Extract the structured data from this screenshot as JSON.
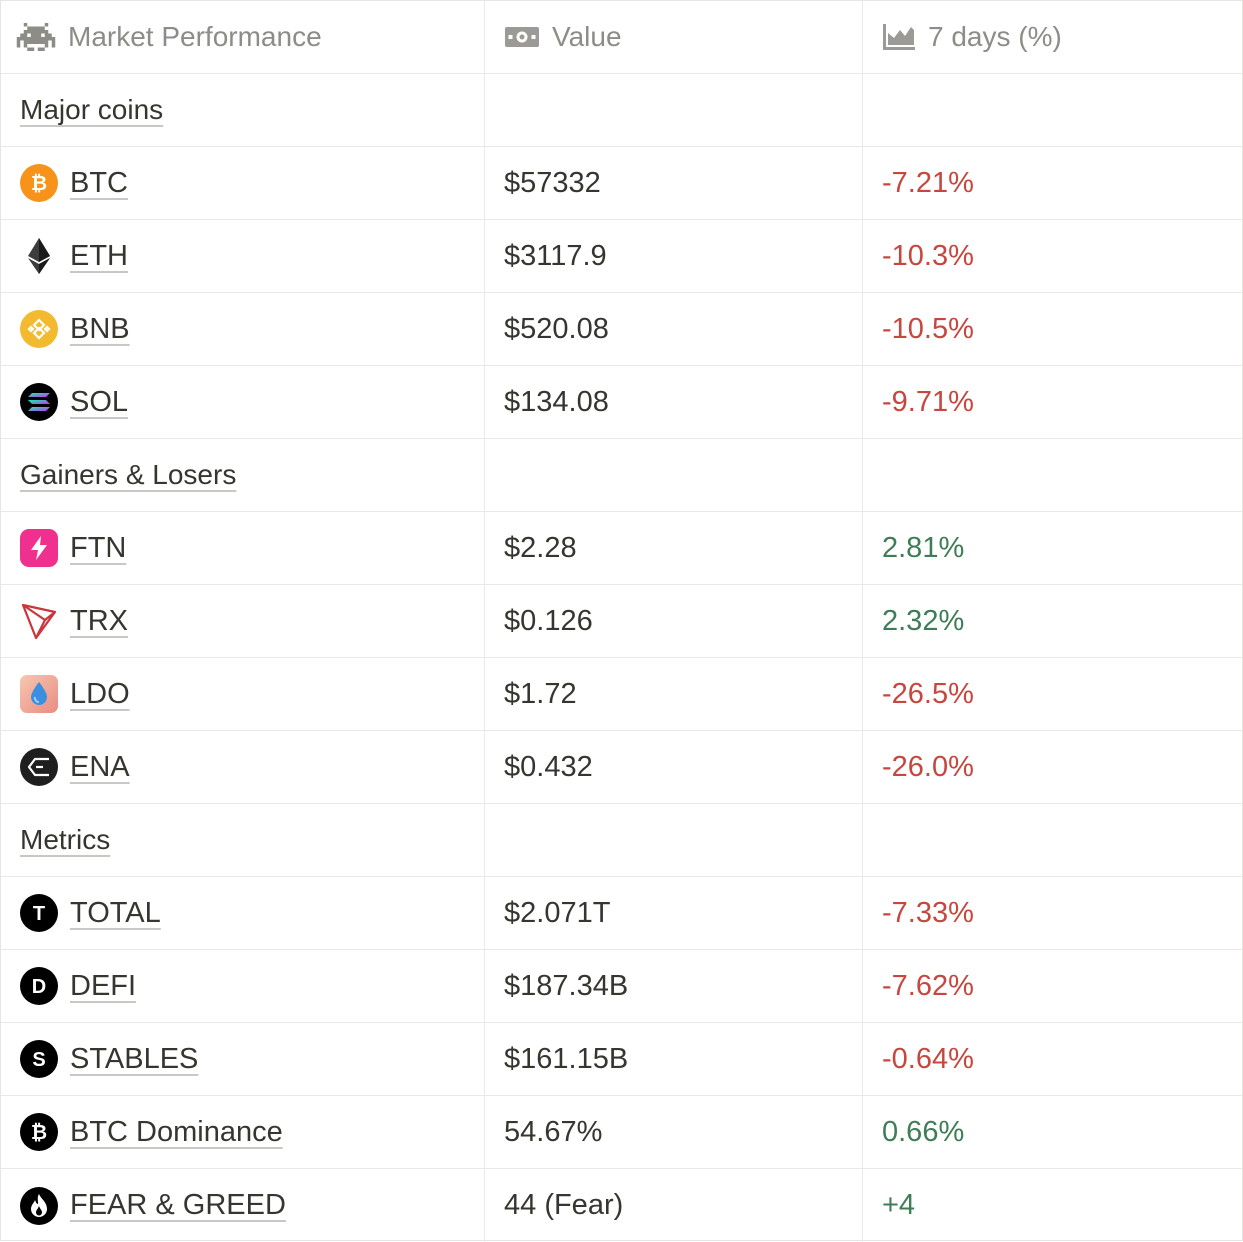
{
  "header": {
    "col1": "Market Performance",
    "col2": "Value",
    "col3": "7 days (%)",
    "icons": [
      "space-invader-icon",
      "money-icon",
      "area-chart-icon"
    ]
  },
  "sections": {
    "major": "Major coins",
    "gainers": "Gainers & Losers",
    "metrics": "Metrics"
  },
  "rows": [
    {
      "name": "BTC",
      "value": "$57332",
      "change": "-7.21%"
    },
    {
      "name": "ETH",
      "value": "$3117.9",
      "change": "-10.3%"
    },
    {
      "name": "BNB",
      "value": "$520.08",
      "change": "-10.5%"
    },
    {
      "name": "SOL",
      "value": "$134.08",
      "change": "-9.71%"
    },
    {
      "name": "FTN",
      "value": "$2.28",
      "change": "2.81%"
    },
    {
      "name": "TRX",
      "value": "$0.126",
      "change": "2.32%"
    },
    {
      "name": "LDO",
      "value": "$1.72",
      "change": "-26.5%"
    },
    {
      "name": "ENA",
      "value": "$0.432",
      "change": "-26.0%"
    },
    {
      "name": "TOTAL",
      "value": "$2.071T",
      "change": "-7.33%"
    },
    {
      "name": "DEFI",
      "value": "$187.34B",
      "change": "-7.62%"
    },
    {
      "name": "STABLES",
      "value": "$161.15B",
      "change": "-0.64%"
    },
    {
      "name": "BTC Dominance",
      "value": "54.67%",
      "change": "0.66%"
    },
    {
      "name": "FEAR & GREED",
      "value": "44 (Fear)",
      "change": "+4"
    }
  ],
  "colors": {
    "negative": "#c7473f",
    "positive": "#3f7d57",
    "btc": "#f7931a",
    "bnb": "#f3ba2f",
    "ftn": "#f0308f",
    "trx": "#c9373a"
  }
}
